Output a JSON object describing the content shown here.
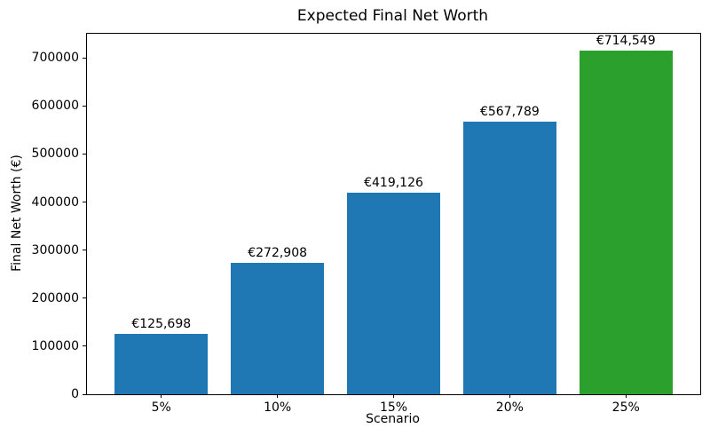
{
  "chart_data": {
    "type": "bar",
    "title": "Expected Final Net Worth",
    "xlabel": "Scenario",
    "ylabel": "Final Net Worth (€)",
    "categories": [
      "5%",
      "10%",
      "15%",
      "20%",
      "25%"
    ],
    "values": [
      125698,
      272908,
      419126,
      567789,
      714549
    ],
    "bar_labels": [
      "€125,698",
      "€272,908",
      "€419,126",
      "€567,789",
      "€714,549"
    ],
    "bar_colors": [
      "#1f77b4",
      "#1f77b4",
      "#1f77b4",
      "#1f77b4",
      "#2ca02c"
    ],
    "yticks": [
      0,
      100000,
      200000,
      300000,
      400000,
      500000,
      600000,
      700000
    ],
    "ylim": [
      0,
      750276
    ],
    "grid": false,
    "legend_position": "none",
    "spine_color": "#000000",
    "background_color": "#ffffff"
  }
}
